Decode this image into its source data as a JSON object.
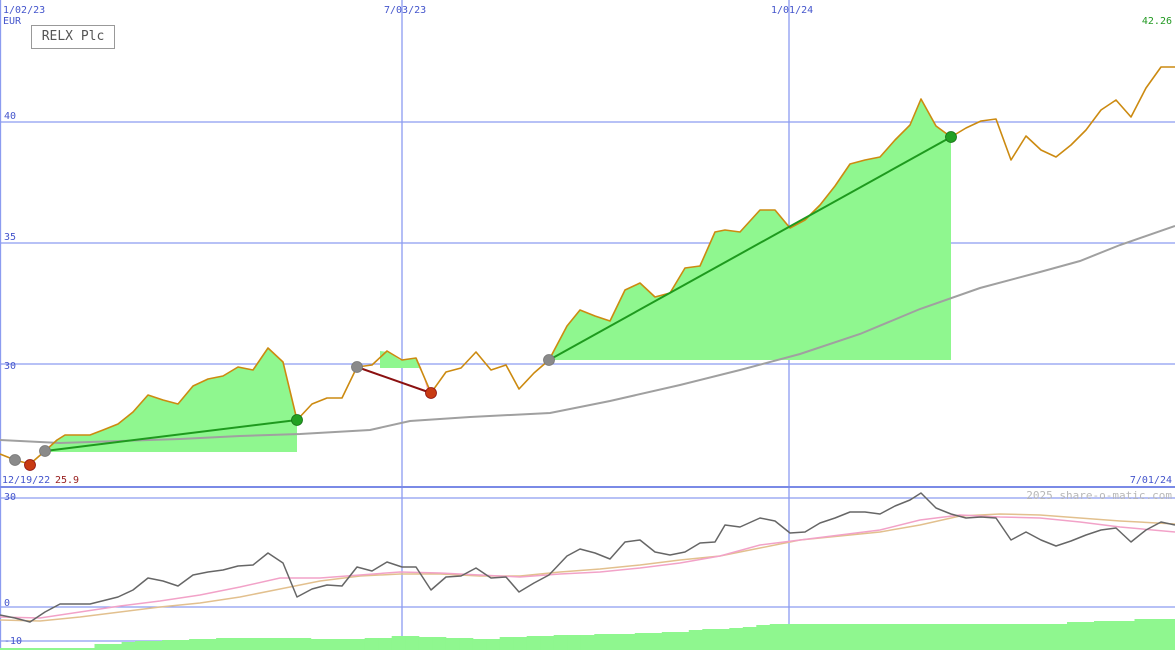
{
  "header": {
    "date_start": "1/02/23",
    "date_mid": "7/03/23",
    "date_late": "1/01/24",
    "currency": "EUR",
    "last_price": "42.26",
    "title": "RELX Plc"
  },
  "footer": {
    "date_left": "12/19/22",
    "low_value": "25.9",
    "date_right": "7/01/24",
    "watermark": "2025 share-o-matic.com"
  },
  "colors": {
    "price": "#cc8a10",
    "ma_long": "#a0a0a0",
    "gain_fill": "#8ff78f",
    "loss_fill": "#ffb4c8",
    "gain_line": "#1e9a1e",
    "loss_line": "#8b1010",
    "grid": "#8c9cf0",
    "osc": "#666666",
    "osc_fast": "#f2a2c8",
    "osc_slow": "#e2c08e",
    "volume": "#8ff78f"
  },
  "chart_data": [
    {
      "type": "line",
      "title": "RELX Plc",
      "ylabel": "EUR",
      "ylim": [
        25,
        43
      ],
      "yticks": [
        30,
        35,
        40
      ],
      "xticks": [
        "1/02/23",
        "7/03/23",
        "1/01/24"
      ],
      "x_range": [
        "12/19/22",
        "7/01/24"
      ],
      "grid": true,
      "series": [
        {
          "values": [
            26.2,
            25.9,
            26.6,
            27.2,
            27.2,
            27.5,
            28.0,
            28.9,
            28.6,
            29.3,
            29.6,
            29.9,
            30.7,
            29.9,
            27.8,
            28.4,
            28.6,
            29.9,
            30.6,
            30.2,
            29.7,
            28.0,
            29.5,
            29.7,
            30.5,
            29.9,
            28.8,
            30.1,
            31.7,
            32.3,
            31.8,
            33.1,
            33.2,
            32.7,
            32.9,
            33.8,
            34.1,
            35.4,
            36.4,
            35.6,
            36.6,
            38.2,
            38.7,
            39.4,
            40.9,
            39.7,
            40.1,
            38.6,
            39.5,
            38.9,
            39.4,
            40.2,
            40.7,
            40.4,
            41.8,
            42.26
          ]
        },
        {
          "values": [
            27.0,
            27.1,
            27.2,
            27.3,
            27.4,
            27.6,
            27.7,
            27.8,
            27.9,
            28.1,
            28.3,
            28.5,
            28.8,
            29.2,
            29.6,
            30.1,
            30.6,
            31.1,
            31.5,
            32.0,
            32.4,
            32.8,
            33.2,
            33.5,
            33.9,
            34.5,
            35.3,
            36.2
          ]
        }
      ],
      "annotations": {
        "min_label": "25.9",
        "trades": [
          {
            "result": "gain",
            "from": 26.7,
            "to": 27.9
          },
          {
            "result": "loss",
            "from": 29.9,
            "to": 28.0
          },
          {
            "result": "gain",
            "from": 30.2,
            "to": 39.4
          }
        ]
      }
    },
    {
      "type": "line",
      "ylim": [
        -10,
        30
      ],
      "yticks": [
        -10,
        0,
        30
      ],
      "series": [
        {
          "values": [
            -2,
            -4,
            0,
            0,
            1,
            2,
            5,
            4,
            6,
            7,
            9,
            8,
            12,
            3,
            6,
            7,
            11,
            10,
            8,
            3,
            7,
            6,
            9,
            6,
            8,
            3,
            7,
            12,
            14,
            11,
            15,
            13,
            17,
            17,
            13,
            18,
            20,
            21,
            23,
            25,
            23,
            22,
            24,
            26,
            29,
            24,
            24,
            22,
            20,
            24,
            22,
            20,
            21,
            19,
            23,
            22
          ]
        },
        {
          "values": [
            -2,
            -3,
            -2,
            -1,
            0,
            1,
            2,
            3,
            4,
            5,
            6,
            6,
            7,
            7,
            7,
            8,
            8,
            8,
            8,
            8,
            8,
            8,
            8,
            8,
            9,
            9,
            10,
            10,
            11,
            12,
            13,
            14,
            15,
            16,
            17,
            18,
            19,
            20,
            22,
            23,
            24,
            24,
            25,
            25,
            24,
            23,
            22,
            21
          ]
        },
        {
          "values": [
            -4,
            -4,
            -3,
            -2,
            -1,
            0,
            1,
            2,
            3,
            4,
            5,
            6,
            6,
            7,
            7,
            7,
            7,
            8,
            8,
            8,
            8,
            9,
            9,
            10,
            11,
            12,
            13,
            14,
            15,
            16,
            17,
            18,
            19,
            20,
            22,
            24,
            25,
            25,
            24,
            23,
            22,
            21
          ]
        }
      ]
    }
  ]
}
